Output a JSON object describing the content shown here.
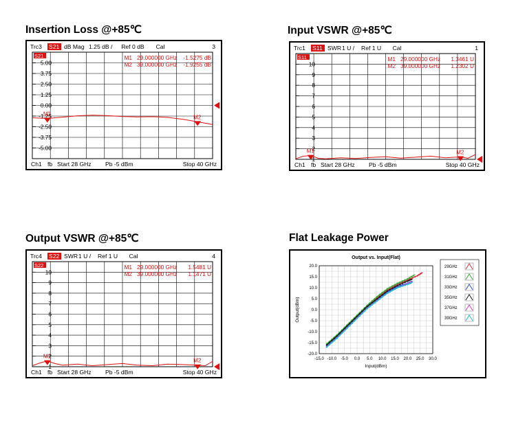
{
  "titles": {
    "insertion_loss": "Insertion Loss @+85℃",
    "input_vswr": "Input VSWR @+85℃",
    "output_vswr": "Output VSWR @+85℃",
    "flat_leakage": "Flat Leakage Power"
  },
  "colors": {
    "trace": "#e01010",
    "header_box": "#e01010",
    "grid": "#000000"
  },
  "chart_data": [
    {
      "id": "il",
      "type": "line",
      "header": {
        "trace": "Trc3",
        "param": "S21",
        "format": "dB Mag",
        "scale": "1.25 dB /",
        "ref": "Ref 0 dB",
        "cal": "Cal",
        "num": "3"
      },
      "param_tag": "S21",
      "y_tick_labels": [
        "5.00",
        "3.75",
        "2.50",
        "1.25",
        "0.00",
        "-1.25",
        "-2.50",
        "-3.75",
        "-5.00"
      ],
      "ylim": [
        -6.25,
        6.25
      ],
      "xlim": [
        28,
        40
      ],
      "markers": [
        {
          "name": "M1",
          "freq": "29.000000 GHz",
          "value": "-1.5275 dB",
          "x": 29,
          "y": -1.5275
        },
        {
          "name": "M2",
          "freq": "39.000000 GHz",
          "value": "-1.9255 dB",
          "x": 39,
          "y": -1.9255
        }
      ],
      "trace": {
        "x": [
          28,
          29,
          30,
          31,
          32,
          33,
          34,
          35,
          36,
          37,
          38,
          39,
          40
        ],
        "y": [
          -1.45,
          -1.53,
          -1.38,
          -1.22,
          -1.15,
          -1.2,
          -1.3,
          -1.35,
          -1.32,
          -1.4,
          -1.62,
          -1.93,
          -2.25
        ]
      },
      "ref_arrow_y": 0,
      "footer": {
        "ch": "Ch1",
        "fb": "fb",
        "start": "Start  28 GHz",
        "pb": "Pb  -5 dBm",
        "stop": "Stop  40 GHz"
      }
    },
    {
      "id": "ivswr",
      "type": "line",
      "header": {
        "trace": "Trc1",
        "param": "S11",
        "format": "SWR",
        "scale": "1 U /",
        "ref": "Ref 1 U",
        "cal": "Cal",
        "num": "1"
      },
      "param_tag": "S11",
      "y_tick_labels": [
        "10",
        "9",
        "8",
        "7",
        "6",
        "5",
        "4",
        "3",
        "2",
        "1"
      ],
      "ylim": [
        1,
        11
      ],
      "xlim": [
        28,
        40
      ],
      "markers": [
        {
          "name": "M1",
          "freq": "29.000000 GHz",
          "value": "1.3461 U",
          "x": 29,
          "y": 1.3461
        },
        {
          "name": "M2",
          "freq": "39.000000 GHz",
          "value": "1.2302 U",
          "x": 39,
          "y": 1.2302
        }
      ],
      "trace": {
        "x": [
          28,
          28.5,
          29,
          29.5,
          30,
          31,
          32,
          33,
          34,
          35,
          36,
          37,
          38,
          39,
          39.5,
          40
        ],
        "y": [
          1.05,
          1.3,
          1.35,
          1.1,
          1.05,
          1.15,
          1.08,
          1.18,
          1.25,
          1.12,
          1.2,
          1.3,
          1.15,
          1.23,
          1.1,
          1.45
        ]
      },
      "ref_arrow_y": 1,
      "footer": {
        "ch": "Ch1",
        "fb": "fb",
        "start": "Start  28 GHz",
        "pb": "Pb  -5 dBm",
        "stop": "Stop  40 GHz"
      }
    },
    {
      "id": "ovswr",
      "type": "line",
      "header": {
        "trace": "Trc4",
        "param": "S22",
        "format": "SWR",
        "scale": "1 U /",
        "ref": "Ref 1 U",
        "cal": "Cal",
        "num": "4"
      },
      "param_tag": "S22",
      "y_tick_labels": [
        "10",
        "9",
        "8",
        "7",
        "6",
        "5",
        "4",
        "3",
        "2",
        "1"
      ],
      "ylim": [
        1,
        11
      ],
      "xlim": [
        28,
        40
      ],
      "markers": [
        {
          "name": "M1",
          "freq": "29.000000 GHz",
          "value": "1.5481 U",
          "x": 29,
          "y": 1.5481
        },
        {
          "name": "M2",
          "freq": "39.000000 GHz",
          "value": "1.1471 U",
          "x": 39,
          "y": 1.1471
        }
      ],
      "trace": {
        "x": [
          28,
          28.5,
          29,
          29.5,
          30,
          31,
          32,
          33,
          34,
          35,
          36,
          37,
          38,
          39,
          39.5,
          40
        ],
        "y": [
          1.1,
          1.35,
          1.55,
          1.3,
          1.15,
          1.25,
          1.1,
          1.2,
          1.3,
          1.15,
          1.1,
          1.25,
          1.2,
          1.15,
          1.1,
          1.5
        ]
      },
      "ref_arrow_y": 1,
      "footer": {
        "ch": "Ch1",
        "fb": "fb",
        "start": "Start  28 GHz",
        "pb": "Pb  -5 dBm",
        "stop": "Stop  40 GHz"
      }
    },
    {
      "id": "leak",
      "type": "line",
      "title": "Output vs. Input(Flat)",
      "xlabel": "Input(dBm)",
      "ylabel": "Output(dBm)",
      "xlim": [
        -15,
        30
      ],
      "ylim": [
        -20,
        20
      ],
      "x_ticks": [
        "-15.0",
        "-10.0",
        "-5.0",
        "0.0",
        "5.0",
        "10.0",
        "15.0",
        "20.0",
        "25.0",
        "30.0"
      ],
      "y_ticks": [
        "20.0",
        "15.0",
        "10.0",
        "5.0",
        "0.0",
        "-5.0",
        "-10.0",
        "-15.0",
        "-20.0"
      ],
      "grid": true,
      "legend_position": "right",
      "series": [
        {
          "name": "29GHz",
          "color": "#e03040",
          "x": [
            -12,
            -8,
            -4,
            0,
            4,
            8,
            12,
            16,
            20,
            24,
            26
          ],
          "y": [
            -16,
            -12,
            -7.5,
            -3,
            1.5,
            5.5,
            9,
            11.5,
            13.5,
            15.5,
            17
          ]
        },
        {
          "name": "31GHz",
          "color": "#30b030",
          "x": [
            -12,
            -8,
            -4,
            0,
            4,
            8,
            12,
            16,
            20,
            23
          ],
          "y": [
            -15.5,
            -11.5,
            -7,
            -2.5,
            2,
            6,
            9.5,
            12,
            14,
            16
          ]
        },
        {
          "name": "33GHz",
          "color": "#3050e0",
          "x": [
            -12,
            -8,
            -4,
            0,
            4,
            8,
            12,
            16,
            20,
            22
          ],
          "y": [
            -16.5,
            -12.5,
            -8,
            -3.5,
            1,
            4.5,
            8,
            10.5,
            12,
            13
          ]
        },
        {
          "name": "35GHz",
          "color": "#202020",
          "x": [
            -12,
            -8,
            -4,
            0,
            4,
            8,
            12,
            16,
            20,
            22
          ],
          "y": [
            -16,
            -12,
            -7.5,
            -3,
            1.5,
            5,
            8.5,
            11,
            13,
            14
          ]
        },
        {
          "name": "37GHz",
          "color": "#d040d0",
          "x": [
            -12,
            -8,
            -4,
            0,
            4,
            8,
            12,
            16,
            20,
            22
          ],
          "y": [
            -16.8,
            -12.8,
            -8.3,
            -3.8,
            0.7,
            4.2,
            7.5,
            10,
            11.8,
            12.8
          ]
        },
        {
          "name": "39GHz",
          "color": "#20c0d0",
          "x": [
            -12,
            -8,
            -4,
            0,
            4,
            8,
            12,
            16,
            20,
            22
          ],
          "y": [
            -17,
            -13,
            -8.5,
            -4,
            0.5,
            4,
            7.5,
            10,
            11.5,
            12.5
          ]
        }
      ]
    }
  ]
}
